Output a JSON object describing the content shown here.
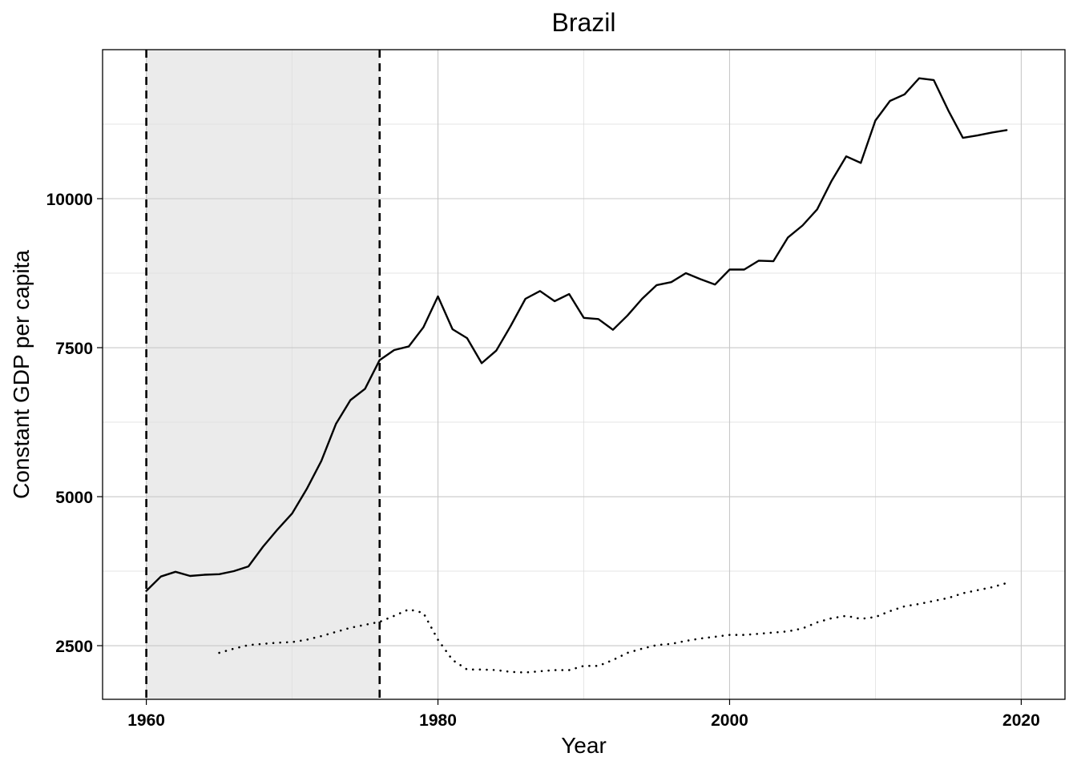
{
  "chart_data": {
    "type": "line",
    "title": "Brazil",
    "xlabel": "Year",
    "ylabel": "Constant GDP per capita",
    "xlim": [
      1957,
      2023
    ],
    "ylim": [
      1600,
      12500
    ],
    "x_ticks": [
      1960,
      1980,
      2000,
      2020
    ],
    "y_ticks": [
      2500,
      5000,
      7500,
      10000
    ],
    "grid": true,
    "shaded_period": {
      "start": 1960,
      "end": 1976,
      "color": "#ebebeb"
    },
    "reference_lines": [
      1960,
      1976
    ],
    "series": [
      {
        "line_style": "solid",
        "x": [
          1960,
          1961,
          1962,
          1963,
          1964,
          1965,
          1966,
          1967,
          1968,
          1969,
          1970,
          1971,
          1972,
          1973,
          1974,
          1975,
          1976,
          1977,
          1978,
          1979,
          1980,
          1981,
          1982,
          1983,
          1984,
          1985,
          1986,
          1987,
          1988,
          1989,
          1990,
          1991,
          1992,
          1993,
          1994,
          1995,
          1996,
          1997,
          1998,
          1999,
          2000,
          2001,
          2002,
          2003,
          2004,
          2005,
          2006,
          2007,
          2008,
          2009,
          2010,
          2011,
          2012,
          2013,
          2014,
          2015,
          2016,
          2017,
          2018,
          2019
        ],
        "values": [
          3420,
          3660,
          3740,
          3670,
          3690,
          3700,
          3750,
          3830,
          4160,
          4450,
          4720,
          5130,
          5600,
          6220,
          6620,
          6810,
          7290,
          7460,
          7520,
          7840,
          8360,
          7810,
          7660,
          7240,
          7450,
          7870,
          8320,
          8450,
          8280,
          8400,
          8000,
          7980,
          7800,
          8040,
          8320,
          8550,
          8600,
          8750,
          8650,
          8560,
          8810,
          8810,
          8960,
          8950,
          9350,
          9550,
          9820,
          10300,
          10710,
          10600,
          11310,
          11640,
          11750,
          12020,
          11990,
          11480,
          11020,
          11060,
          11110,
          11150
        ]
      },
      {
        "line_style": "dotted",
        "x": [
          1965,
          1966,
          1967,
          1968,
          1969,
          1970,
          1971,
          1972,
          1973,
          1974,
          1975,
          1976,
          1977,
          1978,
          1979,
          1980,
          1981,
          1982,
          1983,
          1984,
          1985,
          1986,
          1987,
          1988,
          1989,
          1990,
          1991,
          1992,
          1993,
          1994,
          1995,
          1996,
          1997,
          1998,
          1999,
          2000,
          2001,
          2002,
          2003,
          2004,
          2005,
          2006,
          2007,
          2008,
          2009,
          2010,
          2011,
          2012,
          2013,
          2014,
          2015,
          2016,
          2017,
          2018,
          2019
        ],
        "values": [
          2380,
          2450,
          2510,
          2530,
          2550,
          2560,
          2600,
          2660,
          2730,
          2800,
          2850,
          2900,
          3000,
          3110,
          3050,
          2600,
          2260,
          2100,
          2100,
          2090,
          2060,
          2050,
          2070,
          2090,
          2090,
          2160,
          2160,
          2260,
          2380,
          2450,
          2510,
          2530,
          2580,
          2620,
          2650,
          2680,
          2680,
          2700,
          2720,
          2740,
          2790,
          2890,
          2960,
          3000,
          2950,
          2980,
          3080,
          3160,
          3200,
          3250,
          3300,
          3380,
          3430,
          3480,
          3550
        ]
      }
    ]
  }
}
